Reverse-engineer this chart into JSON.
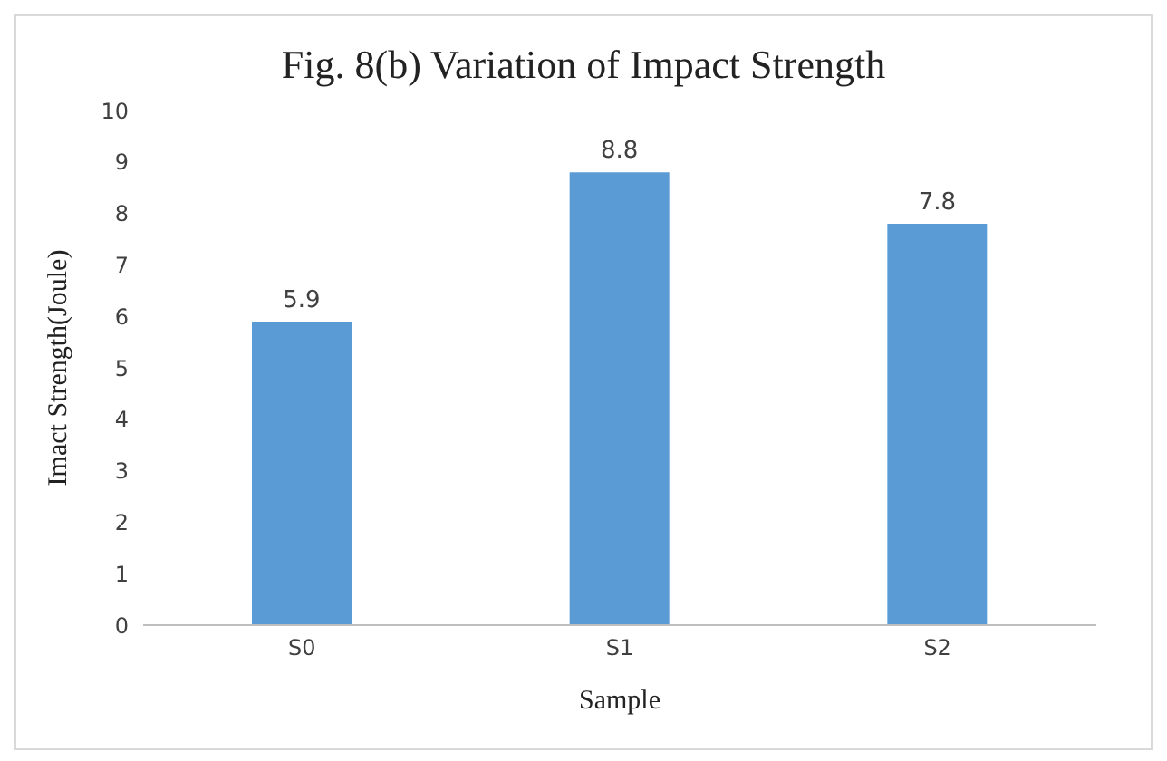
{
  "chart_data": {
    "type": "bar",
    "title": "Fig. 8(b) Variation of Impact Strength",
    "xlabel": "Sample",
    "ylabel": "Imact Strength(Joule)",
    "categories": [
      "S0",
      "S1",
      "S2"
    ],
    "values": [
      5.9,
      8.8,
      7.8
    ],
    "color": "#5b9bd5",
    "ylim": [
      0,
      10
    ],
    "yticks": [
      0,
      1,
      2,
      3,
      4,
      5,
      6,
      7,
      8,
      9,
      10
    ],
    "grid": false,
    "data_labels": true
  }
}
